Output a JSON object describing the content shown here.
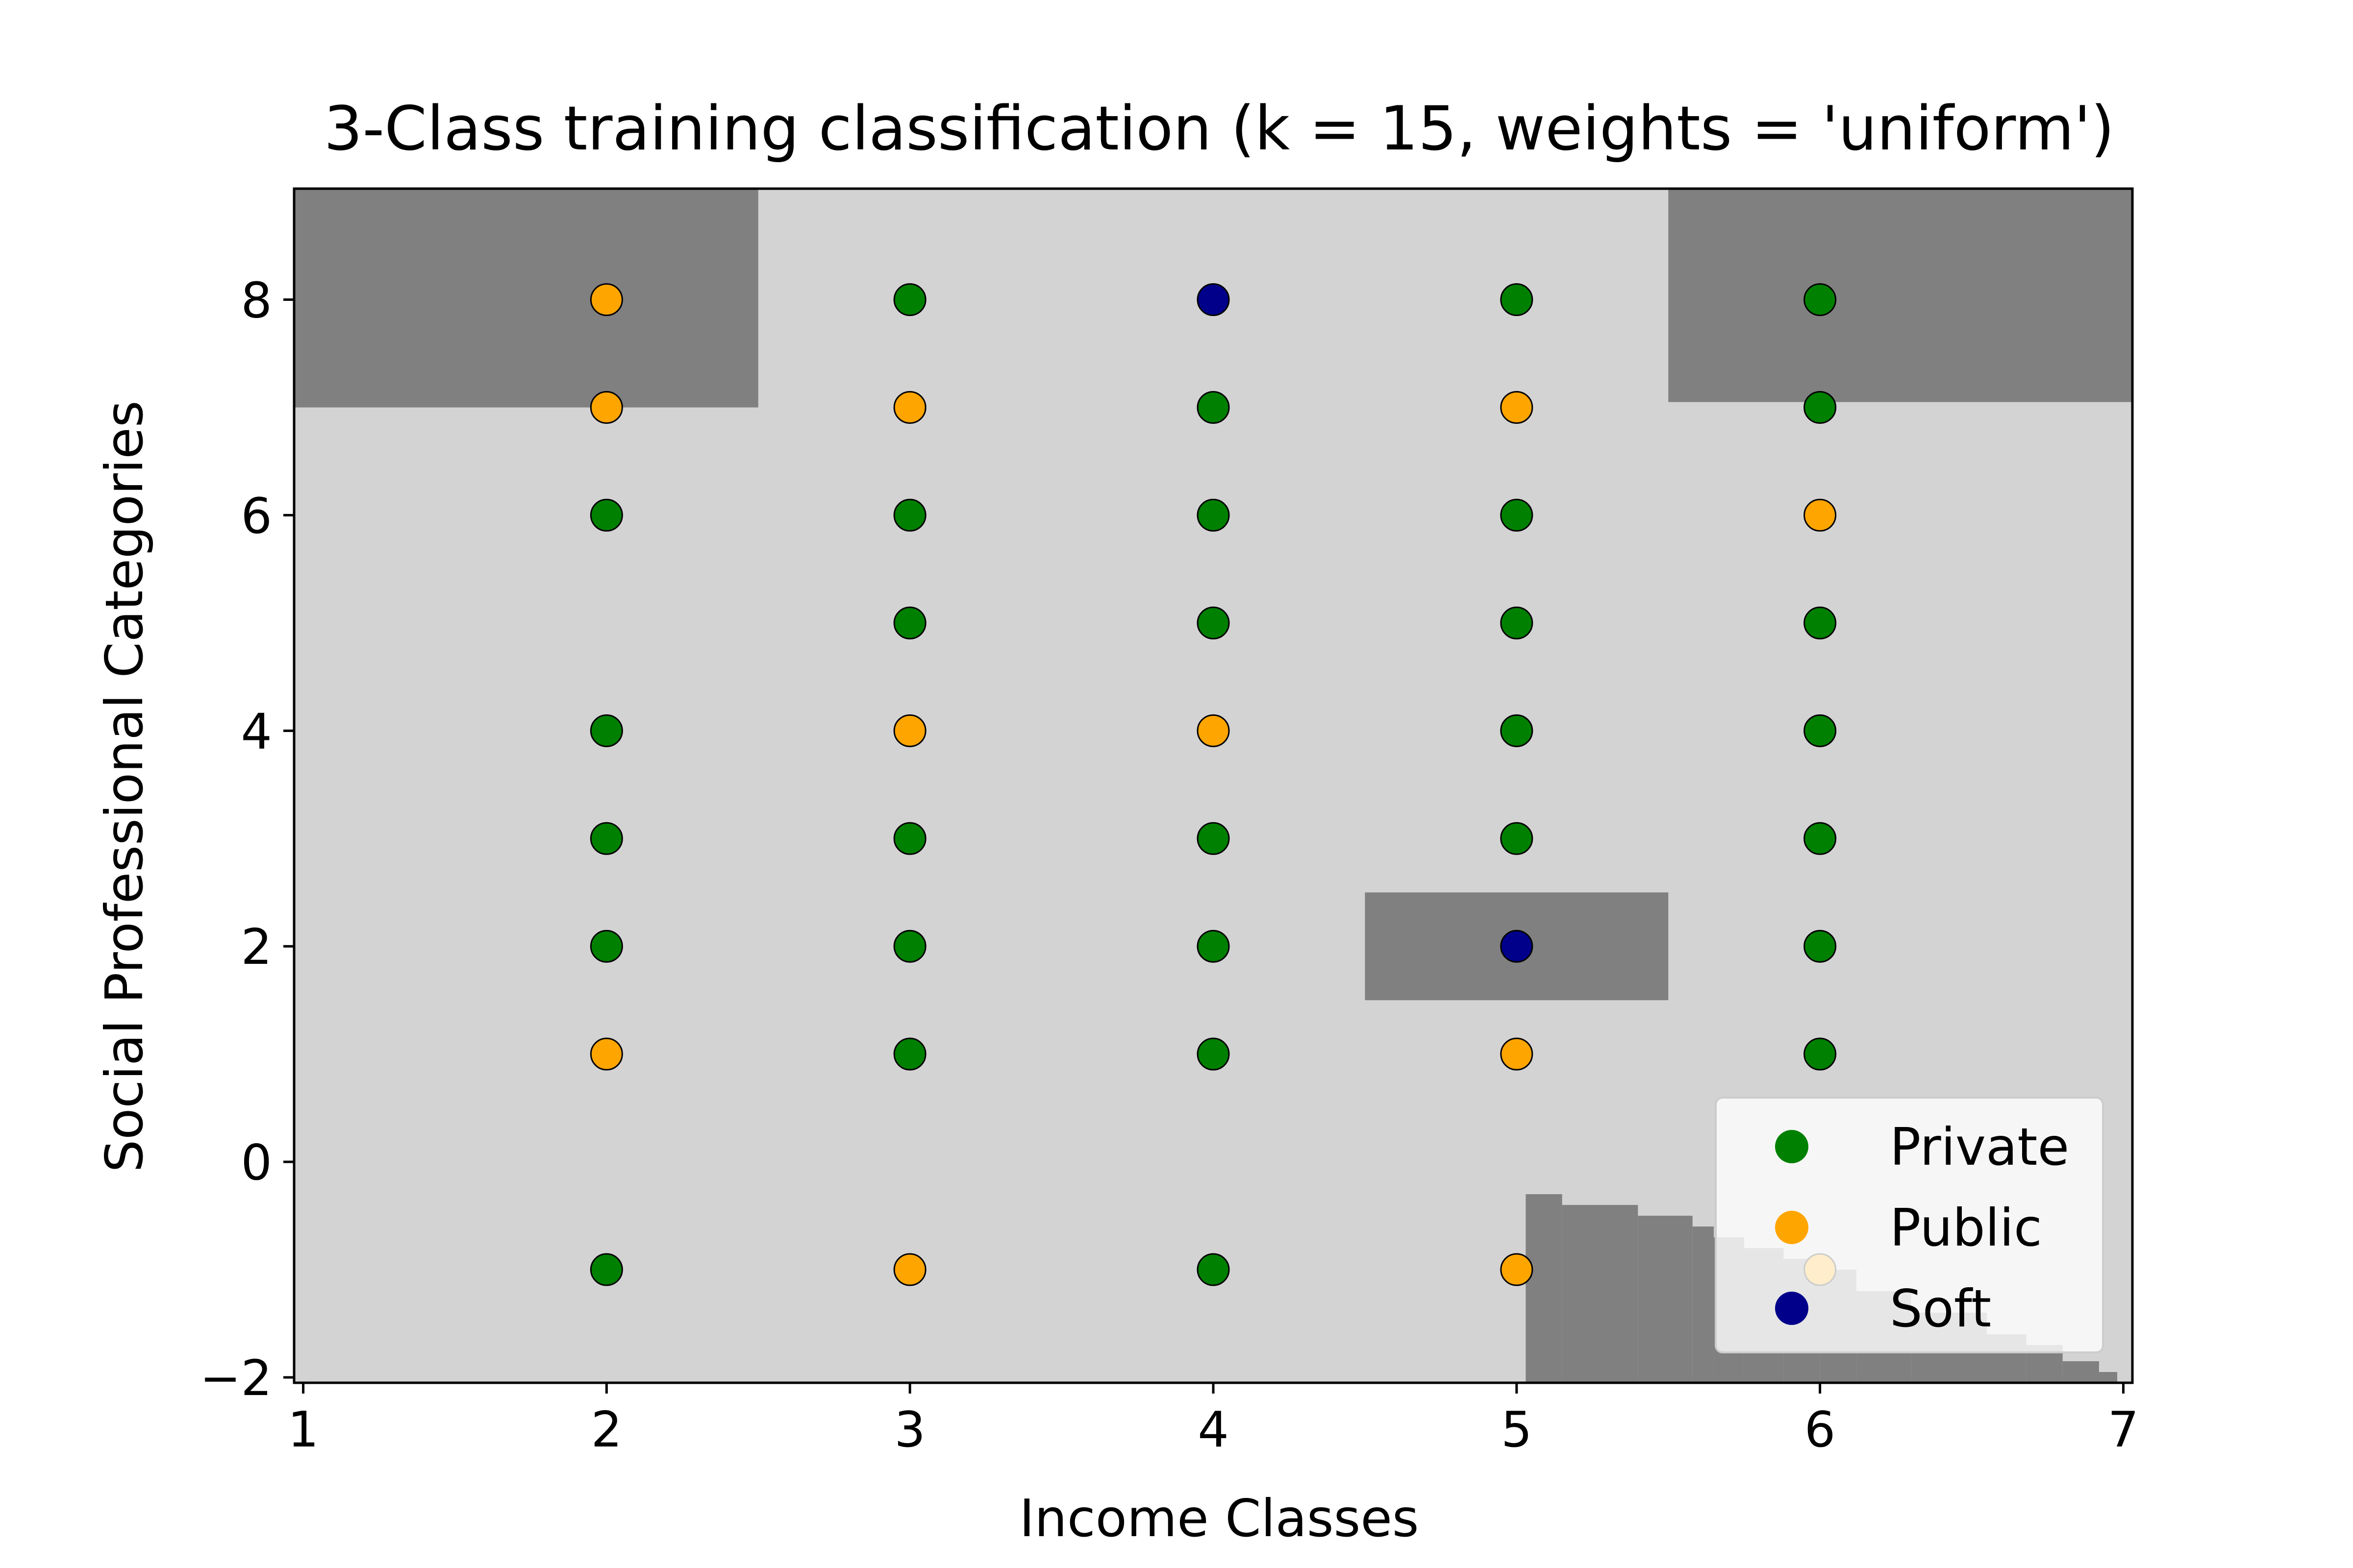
{
  "chart_data": {
    "type": "scatter",
    "title": "3-Class training classification (k = 15, weights = 'uniform')",
    "xlabel": "Income Classes",
    "ylabel": "Social Professional Categories",
    "xlim": [
      0.97,
      7.03
    ],
    "ylim": [
      -2.05,
      9.03
    ],
    "xticks": [
      "1",
      "2",
      "3",
      "4",
      "5",
      "6",
      "7"
    ],
    "yticks": [
      "−2",
      "0",
      "2",
      "4",
      "6",
      "8"
    ],
    "legend_position": "lower-right",
    "background_color": "#d3d3d3",
    "region_color": "#808080",
    "decision_regions": [
      {
        "x": [
          0.97,
          2.5
        ],
        "y": [
          7.0,
          9.03
        ]
      },
      {
        "x": [
          5.5,
          7.03
        ],
        "y": [
          7.05,
          9.03
        ]
      },
      {
        "x": [
          4.5,
          5.5
        ],
        "y": [
          1.5,
          2.5
        ]
      },
      {
        "x": [
          5.03,
          5.15
        ],
        "y": [
          -2.05,
          -0.3
        ]
      },
      {
        "x": [
          5.15,
          5.4
        ],
        "y": [
          -2.05,
          -0.4
        ]
      },
      {
        "x": [
          5.4,
          5.58
        ],
        "y": [
          -2.05,
          -0.5
        ]
      },
      {
        "x": [
          5.58,
          5.65
        ],
        "y": [
          -2.05,
          -0.6
        ]
      },
      {
        "x": [
          5.65,
          5.75
        ],
        "y": [
          -2.05,
          -0.7
        ]
      },
      {
        "x": [
          5.75,
          5.88
        ],
        "y": [
          -2.05,
          -0.8
        ]
      },
      {
        "x": [
          5.88,
          6.0
        ],
        "y": [
          -2.05,
          -0.9
        ]
      },
      {
        "x": [
          6.0,
          6.12
        ],
        "y": [
          -2.05,
          -1.0
        ]
      },
      {
        "x": [
          6.12,
          6.3
        ],
        "y": [
          -2.05,
          -1.2
        ]
      },
      {
        "x": [
          6.3,
          6.55
        ],
        "y": [
          -2.05,
          -1.4
        ]
      },
      {
        "x": [
          6.55,
          6.68
        ],
        "y": [
          -2.05,
          -1.6
        ]
      },
      {
        "x": [
          6.68,
          6.8
        ],
        "y": [
          -2.05,
          -1.7
        ]
      },
      {
        "x": [
          6.8,
          6.92
        ],
        "y": [
          -2.05,
          -1.85
        ]
      },
      {
        "x": [
          6.92,
          6.98
        ],
        "y": [
          -2.05,
          -1.95
        ]
      }
    ],
    "series": [
      {
        "name": "Private",
        "color": "#008000",
        "points": [
          [
            2,
            6
          ],
          [
            2,
            4
          ],
          [
            2,
            3
          ],
          [
            2,
            2
          ],
          [
            2,
            -1
          ],
          [
            3,
            8
          ],
          [
            3,
            6
          ],
          [
            3,
            5
          ],
          [
            3,
            3
          ],
          [
            3,
            2
          ],
          [
            3,
            1
          ],
          [
            4,
            7
          ],
          [
            4,
            6
          ],
          [
            4,
            5
          ],
          [
            4,
            3
          ],
          [
            4,
            2
          ],
          [
            4,
            1
          ],
          [
            4,
            -1
          ],
          [
            5,
            8
          ],
          [
            5,
            6
          ],
          [
            5,
            5
          ],
          [
            5,
            4
          ],
          [
            5,
            3
          ],
          [
            6,
            8
          ],
          [
            6,
            7
          ],
          [
            6,
            5
          ],
          [
            6,
            4
          ],
          [
            6,
            3
          ],
          [
            6,
            2
          ],
          [
            6,
            1
          ]
        ]
      },
      {
        "name": "Public",
        "color": "#ffa500",
        "points": [
          [
            2,
            8
          ],
          [
            2,
            7
          ],
          [
            2,
            1
          ],
          [
            3,
            7
          ],
          [
            3,
            4
          ],
          [
            3,
            -1
          ],
          [
            4,
            4
          ],
          [
            5,
            7
          ],
          [
            5,
            1
          ],
          [
            5,
            -1
          ],
          [
            6,
            6
          ],
          [
            6,
            -1
          ]
        ]
      },
      {
        "name": "Soft",
        "color": "#00008b",
        "points": [
          [
            4,
            8
          ],
          [
            5,
            2
          ]
        ]
      }
    ]
  }
}
